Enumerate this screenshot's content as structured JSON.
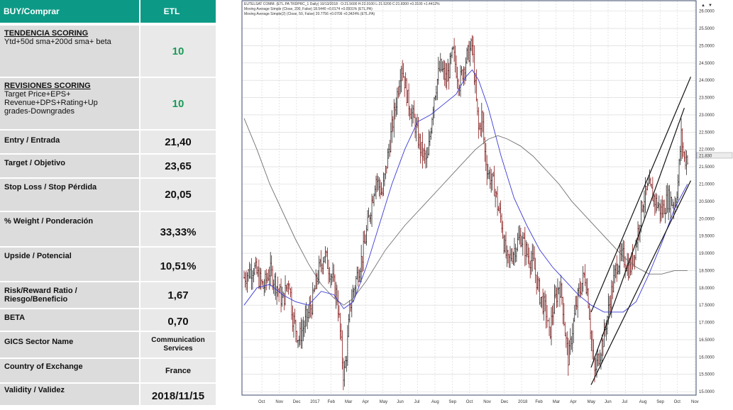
{
  "table": {
    "header_left": "BUY/Comprar",
    "header_right": "ETL",
    "tendencia": {
      "title": "TENDENCIA  SCORING",
      "sub": "Ytd+50d  sma+200d  sma+  beta",
      "value": "10"
    },
    "revisiones": {
      "title": "REVISIONES  SCORING",
      "line1": "Target Price+EPS+",
      "line2": "Revenue+DPS+Rating+Up",
      "line3": "grades-Downgrades",
      "value": "10"
    },
    "rows": [
      {
        "label": "Entry / Entrada",
        "value": "21,40"
      },
      {
        "label": "Target / Objetivo",
        "value": "23,65"
      },
      {
        "label": "Stop Loss / Stop Pérdida",
        "value": "20,05"
      },
      {
        "label": "% Weight / Ponderación",
        "value": "33,33%"
      },
      {
        "label": "Upside / Potencial",
        "value": "10,51%"
      },
      {
        "label": "Risk/Reward Ratio /",
        "label2": "Riesgo/Beneficio",
        "value": "1,67"
      },
      {
        "label": "BETA",
        "value": "0,70"
      },
      {
        "label": "GICS Sector Name",
        "value": "Communication",
        "value2": "Services"
      },
      {
        "label": "Country of Exchange",
        "value": "France"
      },
      {
        "label": "Validity  /  Validez",
        "value": "2018/11/15"
      }
    ]
  },
  "chart_data": {
    "type": "line",
    "legend_lines": [
      "EUTELSAT COMM. (ETL.PA TRDPRC_1 Daily) 10/13/2018 : O:21.5600 H:22.0100 L:21.5200 C:21.8300 +0.3100 +1.4412%",
      "Moving Average Simple (Close, 200, False) 18.5440 +0.0174 +0.0931% (ETL.PA)",
      "Moving Average Simple(2) (Close, 50, False) 20.7756 +0.0709 +0.3424% (ETL.PA)"
    ],
    "last_price_label": "21.830",
    "y_ticks": [
      "26.0000",
      "25.5000",
      "25.0000",
      "24.5000",
      "24.0000",
      "23.5000",
      "23.0000",
      "22.5000",
      "22.0000",
      "21.5000",
      "21.0000",
      "20.5000",
      "20.0000",
      "19.5000",
      "19.0000",
      "18.5000",
      "18.0000",
      "17.5000",
      "17.0000",
      "16.5000",
      "16.0000",
      "15.5000",
      "15.0000"
    ],
    "x_ticks": [
      "Oct",
      "Nov",
      "Dec",
      "2017",
      "Feb",
      "Mar",
      "Apr",
      "May",
      "Jun",
      "Jul",
      "Aug",
      "Sep",
      "Oct",
      "Nov",
      "Dec",
      "2018",
      "Feb",
      "Mar",
      "Apr",
      "May",
      "Jun",
      "Jul",
      "Aug",
      "Sep",
      "Oct",
      "Nov"
    ],
    "ylim": [
      14.9,
      26.3
    ],
    "price_path": [
      [
        0,
        18.3
      ],
      [
        3,
        18.6
      ],
      [
        6,
        18.0
      ],
      [
        8,
        18.5
      ],
      [
        10,
        18.1
      ],
      [
        12,
        17.6
      ],
      [
        14,
        18.3
      ],
      [
        15,
        17.2
      ],
      [
        17,
        16.5
      ],
      [
        19,
        17.0
      ],
      [
        21,
        17.5
      ],
      [
        23,
        18.4
      ],
      [
        25,
        19.0
      ],
      [
        27,
        18.4
      ],
      [
        29,
        17.7
      ],
      [
        30,
        16.6
      ],
      [
        31,
        15.4
      ],
      [
        32,
        16.2
      ],
      [
        33,
        17.5
      ],
      [
        35,
        18.3
      ],
      [
        37,
        19.0
      ],
      [
        39,
        20.1
      ],
      [
        41,
        21.2
      ],
      [
        43,
        20.7
      ],
      [
        45,
        22.0
      ],
      [
        47,
        23.2
      ],
      [
        49,
        24.5
      ],
      [
        51,
        23.4
      ],
      [
        53,
        22.8
      ],
      [
        55,
        22.0
      ],
      [
        57,
        21.6
      ],
      [
        59,
        23.5
      ],
      [
        61,
        24.4
      ],
      [
        63,
        24.0
      ],
      [
        65,
        24.8
      ],
      [
        67,
        23.9
      ],
      [
        69,
        24.6
      ],
      [
        71,
        25.0
      ],
      [
        72,
        23.7
      ],
      [
        73,
        22.5
      ],
      [
        74,
        23.0
      ],
      [
        75,
        21.8
      ],
      [
        76,
        21.3
      ],
      [
        78,
        20.9
      ],
      [
        79,
        20.3
      ],
      [
        80,
        20.0
      ],
      [
        81,
        19.2
      ],
      [
        82,
        18.7
      ],
      [
        84,
        19.1
      ],
      [
        86,
        19.5
      ],
      [
        88,
        19.0
      ],
      [
        90,
        18.7
      ],
      [
        92,
        17.8
      ],
      [
        94,
        17.3
      ],
      [
        95,
        16.6
      ],
      [
        96,
        17.3
      ],
      [
        98,
        18.1
      ],
      [
        99,
        17.7
      ],
      [
        100,
        16.6
      ],
      [
        101,
        15.9
      ],
      [
        102,
        16.7
      ],
      [
        104,
        17.8
      ],
      [
        106,
        18.4
      ],
      [
        107,
        17.8
      ],
      [
        108,
        16.6
      ],
      [
        109,
        15.5
      ],
      [
        110,
        15.9
      ],
      [
        112,
        16.6
      ],
      [
        114,
        17.7
      ],
      [
        116,
        18.7
      ],
      [
        118,
        18.9
      ],
      [
        120,
        18.5
      ],
      [
        122,
        19.3
      ],
      [
        124,
        20.5
      ],
      [
        126,
        20.9
      ],
      [
        128,
        20.5
      ],
      [
        130,
        20.2
      ],
      [
        132,
        20.6
      ],
      [
        134,
        20.4
      ],
      [
        135,
        21.0
      ],
      [
        136,
        22.4
      ],
      [
        137,
        21.7
      ],
      [
        138,
        21.8
      ]
    ],
    "sma200_path": [
      [
        0,
        22.9
      ],
      [
        4,
        22.0
      ],
      [
        8,
        21.0
      ],
      [
        12,
        20.2
      ],
      [
        16,
        19.4
      ],
      [
        20,
        18.7
      ],
      [
        24,
        18.1
      ],
      [
        28,
        17.7
      ],
      [
        31,
        17.5
      ],
      [
        34,
        17.7
      ],
      [
        38,
        18.2
      ],
      [
        44,
        19.1
      ],
      [
        50,
        19.8
      ],
      [
        56,
        20.4
      ],
      [
        62,
        21.0
      ],
      [
        68,
        21.6
      ],
      [
        72,
        22.0
      ],
      [
        76,
        22.3
      ],
      [
        79,
        22.4
      ],
      [
        82,
        22.3
      ],
      [
        86,
        22.1
      ],
      [
        90,
        21.8
      ],
      [
        94,
        21.4
      ],
      [
        98,
        21.0
      ],
      [
        102,
        20.5
      ],
      [
        106,
        20.1
      ],
      [
        110,
        19.7
      ],
      [
        114,
        19.3
      ],
      [
        118,
        18.9
      ],
      [
        122,
        18.6
      ],
      [
        126,
        18.4
      ],
      [
        130,
        18.4
      ],
      [
        134,
        18.5
      ],
      [
        138,
        18.5
      ]
    ],
    "sma50_path": [
      [
        0,
        17.5
      ],
      [
        4,
        18.0
      ],
      [
        8,
        18.1
      ],
      [
        12,
        17.8
      ],
      [
        16,
        17.6
      ],
      [
        20,
        17.5
      ],
      [
        24,
        17.9
      ],
      [
        28,
        17.8
      ],
      [
        31,
        17.4
      ],
      [
        34,
        17.6
      ],
      [
        38,
        18.6
      ],
      [
        42,
        19.8
      ],
      [
        46,
        21.0
      ],
      [
        50,
        22.0
      ],
      [
        54,
        22.8
      ],
      [
        58,
        23.0
      ],
      [
        62,
        23.3
      ],
      [
        66,
        23.6
      ],
      [
        69,
        24.1
      ],
      [
        71,
        24.3
      ],
      [
        73,
        24.0
      ],
      [
        76,
        23.2
      ],
      [
        80,
        21.8
      ],
      [
        84,
        20.6
      ],
      [
        88,
        19.8
      ],
      [
        92,
        19.1
      ],
      [
        96,
        18.6
      ],
      [
        100,
        18.2
      ],
      [
        104,
        17.8
      ],
      [
        108,
        17.5
      ],
      [
        112,
        17.3
      ],
      [
        114,
        17.3
      ],
      [
        118,
        17.3
      ],
      [
        122,
        17.6
      ],
      [
        126,
        18.4
      ],
      [
        130,
        19.3
      ],
      [
        134,
        20.3
      ],
      [
        138,
        21.0
      ]
    ],
    "channel_lines": [
      [
        [
          108,
          17.3
        ],
        [
          139,
          24.1
        ]
      ],
      [
        [
          108,
          15.2
        ],
        [
          139,
          21.1
        ]
      ],
      [
        [
          108,
          15.7
        ],
        [
          137,
          23.2
        ]
      ]
    ]
  }
}
